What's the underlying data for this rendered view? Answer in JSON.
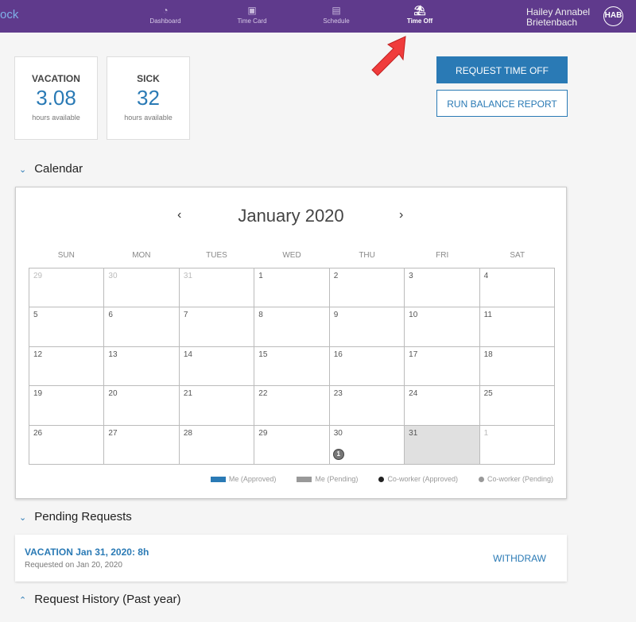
{
  "header": {
    "logo": "ock",
    "nav": [
      {
        "label": "Dashboard",
        "icon": "gauge-icon"
      },
      {
        "label": "Time Card",
        "icon": "timecard-icon"
      },
      {
        "label": "Schedule",
        "icon": "calendar-icon"
      },
      {
        "label": "Time Off",
        "icon": "palm-tree-icon",
        "active": true
      }
    ],
    "user_name_line1": "Hailey Annabel",
    "user_name_line2": "Brietenbach",
    "avatar": "HAB"
  },
  "balances": [
    {
      "title": "VACATION",
      "value": "3.08",
      "unit": "hours available"
    },
    {
      "title": "SICK",
      "value": "32",
      "unit": "hours available"
    }
  ],
  "actions": {
    "request": "REQUEST TIME OFF",
    "report": "RUN BALANCE REPORT"
  },
  "calendar": {
    "section": "Calendar",
    "month": "January 2020",
    "weekdays": [
      "SUN",
      "MON",
      "TUES",
      "WED",
      "THU",
      "FRI",
      "SAT"
    ],
    "days": [
      "29",
      "30",
      "31",
      "1",
      "2",
      "3",
      "4",
      "5",
      "6",
      "7",
      "8",
      "9",
      "10",
      "11",
      "12",
      "13",
      "14",
      "15",
      "16",
      "17",
      "18",
      "19",
      "20",
      "21",
      "22",
      "23",
      "24",
      "25",
      "26",
      "27",
      "28",
      "29",
      "30",
      "31",
      "1"
    ],
    "badge": "1",
    "legend": [
      "Me (Approved)",
      "Me (Pending)",
      "Co-worker (Approved)",
      "Co-worker (Pending)"
    ],
    "colors": {
      "approved": "#2a7ab5",
      "pending": "#999999",
      "coworker_approved": "#222222",
      "coworker_pending": "#999999"
    }
  },
  "pending": {
    "section": "Pending Requests",
    "title": "VACATION Jan 31, 2020: 8h",
    "requested": "Requested on Jan 20, 2020",
    "withdraw": "WITHDRAW"
  },
  "history": {
    "section": "Request History (Past year)"
  }
}
